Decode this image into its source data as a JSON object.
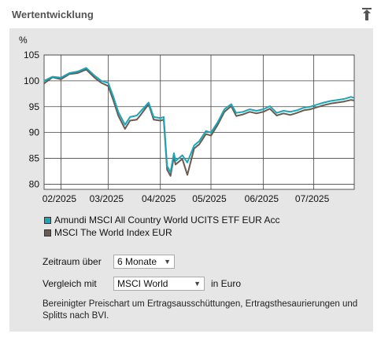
{
  "header": {
    "title": "Wertentwicklung",
    "pin_icon": "pin-icon"
  },
  "chart_data": {
    "type": "line",
    "ylabel": "%",
    "ylim": [
      79,
      105
    ],
    "yticks": [
      80,
      85,
      90,
      95,
      100,
      105
    ],
    "xticks": [
      "02/2025",
      "03/2025",
      "04/2025",
      "05/2025",
      "06/2025",
      "07/2025"
    ],
    "grid": true,
    "x": [
      "2025-01-22",
      "2025-01-27",
      "2025-02-01",
      "2025-02-06",
      "2025-02-11",
      "2025-02-16",
      "2025-02-21",
      "2025-02-25",
      "2025-03-01",
      "2025-03-04",
      "2025-03-07",
      "2025-03-11",
      "2025-03-14",
      "2025-03-18",
      "2025-03-20",
      "2025-03-25",
      "2025-03-28",
      "2025-04-01",
      "2025-04-03",
      "2025-04-05",
      "2025-04-07",
      "2025-04-09",
      "2025-04-10",
      "2025-04-14",
      "2025-04-17",
      "2025-04-21",
      "2025-04-24",
      "2025-04-28",
      "2025-05-01",
      "2025-05-05",
      "2025-05-09",
      "2025-05-13",
      "2025-05-16",
      "2025-05-20",
      "2025-05-24",
      "2025-05-28",
      "2025-06-01",
      "2025-06-05",
      "2025-06-09",
      "2025-06-13",
      "2025-06-17",
      "2025-06-21",
      "2025-06-25",
      "2025-06-29",
      "2025-07-03",
      "2025-07-07",
      "2025-07-11",
      "2025-07-15",
      "2025-07-19",
      "2025-07-23",
      "2025-07-25"
    ],
    "series": [
      {
        "name": "Amundi MSCI All Country World UCITS ETF EUR Acc",
        "color": "#1aa6b8",
        "values": [
          100,
          100.8,
          100.6,
          101.5,
          101.8,
          102.5,
          101,
          100,
          99.6,
          97,
          94,
          91.5,
          93,
          93.3,
          94,
          95.8,
          93,
          92.8,
          93,
          83.5,
          82.3,
          86,
          84.5,
          85.6,
          84.2,
          87.5,
          88.3,
          90.3,
          90,
          92,
          94.5,
          95.5,
          93.8,
          94,
          94.5,
          94.2,
          94.5,
          95.1,
          93.8,
          94.2,
          94,
          94.3,
          94.8,
          95,
          95.4,
          95.8,
          96.1,
          96.3,
          96.5,
          96.9,
          96.7
        ]
      },
      {
        "name": "MSCI The World Index EUR",
        "color": "#6b5a4e",
        "values": [
          99.5,
          100.7,
          100.3,
          101.3,
          101.5,
          102.2,
          100.6,
          99.6,
          99,
          96.3,
          93.3,
          90.7,
          92.3,
          92.5,
          93.3,
          95.5,
          92.5,
          92.3,
          92.5,
          82.8,
          81.6,
          85.3,
          83.8,
          84.9,
          81.8,
          86.9,
          87.7,
          89.7,
          89.4,
          91.5,
          94,
          95.1,
          93.2,
          93.5,
          94,
          93.7,
          94,
          94.6,
          93.3,
          93.7,
          93.4,
          93.8,
          94.3,
          94.5,
          94.9,
          95.3,
          95.6,
          95.8,
          96,
          96.3,
          96.2
        ]
      }
    ]
  },
  "controls": {
    "zeitraum": {
      "label": "Zeitraum über",
      "value": "6 Monate"
    },
    "vergleich": {
      "label": "Vergleich mit",
      "value": "MSCI World",
      "suffix": "in Euro"
    }
  },
  "note": "Bereinigter Preischart um Ertragsausschüttungen, Ertragsthesaurierungen und Splitts nach BVI."
}
